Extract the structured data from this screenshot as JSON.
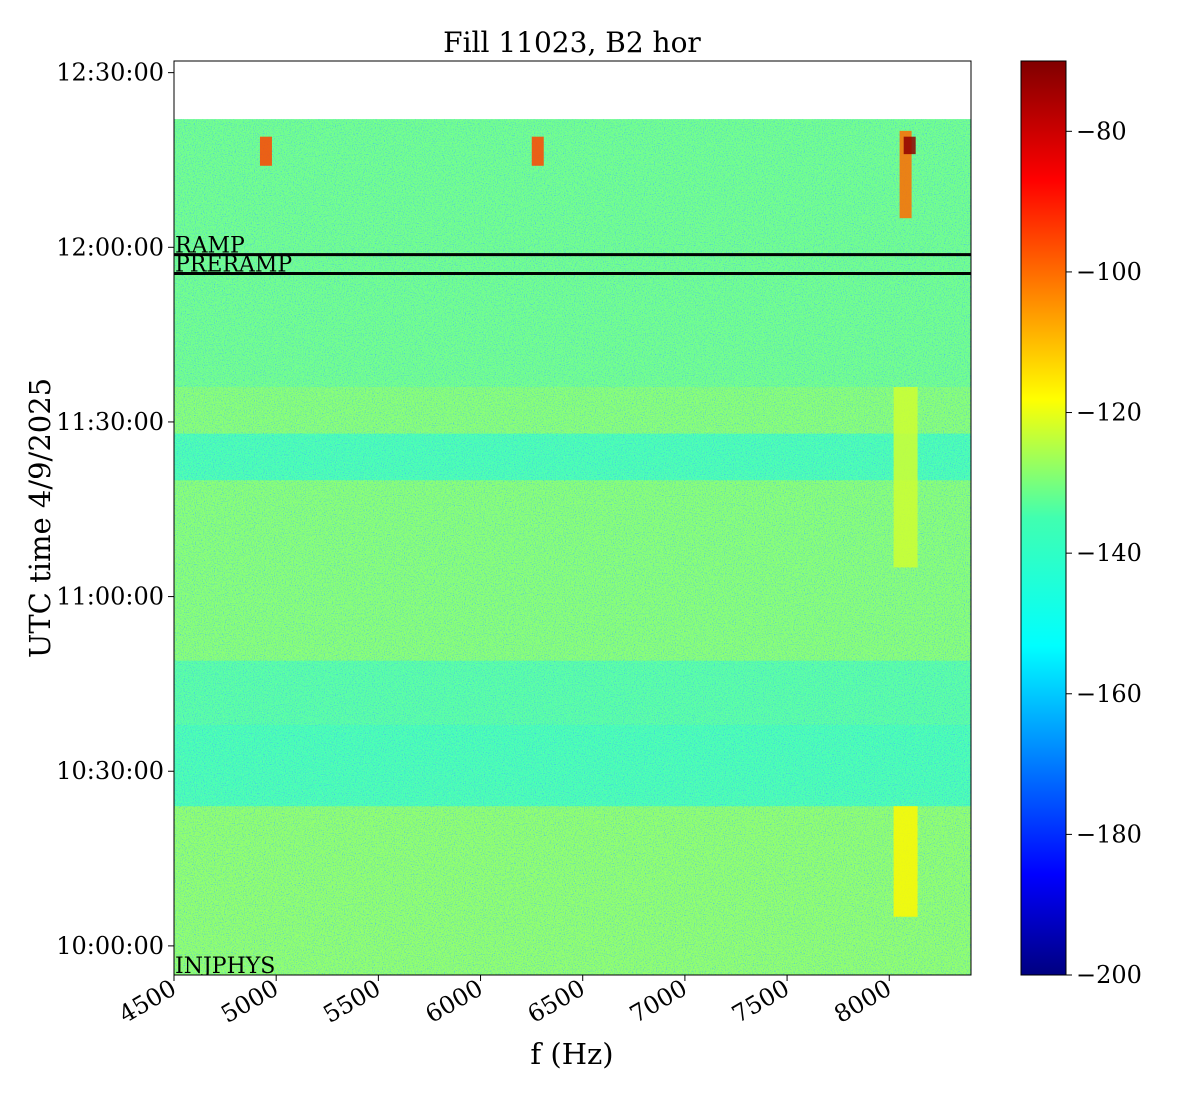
{
  "chart_data": {
    "type": "heatmap",
    "title": "Fill 11023, B2 hor",
    "xlabel": "f (Hz)",
    "ylabel": "UTC time 4/9/2025",
    "xlim": [
      4500,
      8400
    ],
    "ylim": [
      "09:55:00",
      "12:32:00"
    ],
    "data_top": "12:22:00",
    "x_ticks": [
      4500,
      5000,
      5500,
      6000,
      6500,
      7000,
      7500,
      8000
    ],
    "x_tick_labels": [
      "4500",
      "5000",
      "5500",
      "6000",
      "6500",
      "7000",
      "7500",
      "8000"
    ],
    "y_ticks": [
      "10:00:00",
      "10:30:00",
      "11:00:00",
      "11:30:00",
      "12:00:00",
      "12:30:00"
    ],
    "y_tick_labels": [
      "10:00:00",
      "10:30:00",
      "11:00:00",
      "11:30:00",
      "12:00:00",
      "12:30:00"
    ],
    "colorbar": {
      "colormap": "jet",
      "range": [
        -200,
        -70
      ],
      "ticks": [
        -80,
        -100,
        -120,
        -140,
        -160,
        -180,
        -200
      ],
      "tick_labels": [
        "−80",
        "−100",
        "−120",
        "−140",
        "−160",
        "−180",
        "−200"
      ]
    },
    "background_level_db": -138,
    "time_bands": [
      {
        "start": "09:55:00",
        "end": "10:24:00",
        "level_db": -133
      },
      {
        "start": "10:24:00",
        "end": "10:38:00",
        "level_db": -142
      },
      {
        "start": "10:38:00",
        "end": "10:49:00",
        "level_db": -140
      },
      {
        "start": "10:49:00",
        "end": "11:20:00",
        "level_db": -134
      },
      {
        "start": "11:20:00",
        "end": "11:28:00",
        "level_db": -142
      },
      {
        "start": "11:28:00",
        "end": "11:36:00",
        "level_db": -134
      },
      {
        "start": "11:36:00",
        "end": "12:22:00",
        "level_db": -137
      }
    ],
    "features": [
      {
        "f": 8080,
        "start": "10:05:00",
        "end": "10:24:00",
        "level_db": -118
      },
      {
        "f": 8080,
        "start": "11:05:00",
        "end": "11:36:00",
        "level_db": -125
      },
      {
        "f": 8080,
        "start": "12:05:00",
        "end": "12:20:00",
        "level_db": -100
      },
      {
        "f": 8100,
        "start": "12:16:00",
        "end": "12:19:00",
        "level_db": -72
      },
      {
        "f": 4950,
        "start": "12:14:00",
        "end": "12:19:00",
        "level_db": -95
      },
      {
        "f": 6280,
        "start": "12:14:00",
        "end": "12:19:00",
        "level_db": -95
      }
    ],
    "annotations": [
      {
        "label": "RAMP",
        "time": "11:58:45"
      },
      {
        "label": "PRERAMP",
        "time": "11:55:30"
      },
      {
        "label": "INJPHYS",
        "time": "09:55:00"
      }
    ]
  }
}
